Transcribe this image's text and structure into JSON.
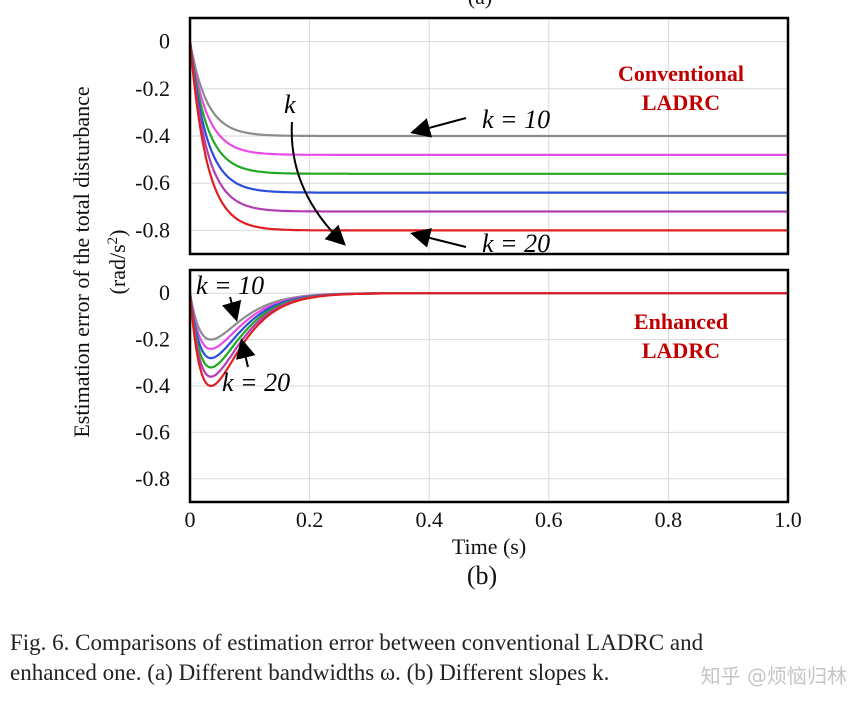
{
  "figure": {
    "ylabel_line1": "Estimation error of the total disturbance",
    "ylabel_line2_prefix": "(rad/s",
    "ylabel_line2_sup": "2",
    "ylabel_line2_suffix": ")",
    "xlabel": "Time (s)",
    "subfig_label": "(b)",
    "top_label_partial": "(a)"
  },
  "caption": {
    "line1": "Fig. 6.    Comparisons of estimation error between conventional LADRC and",
    "line2": "enhanced one. (a) Different bandwidths ω. (b) Different slopes k."
  },
  "watermark": "知乎 @烦恼归林",
  "chart_data": [
    {
      "type": "line",
      "panel": "conventional",
      "title": "Conventional LADRC",
      "title_line1": "Conventional",
      "title_line2": "LADRC",
      "title_color": "#c00000",
      "xlim": [
        0,
        1.0
      ],
      "ylim": [
        -0.9,
        0.1
      ],
      "yticks": [
        "0",
        "-0.2",
        "-0.4",
        "-0.6",
        "-0.8"
      ],
      "ytick_values": [
        0,
        -0.2,
        -0.4,
        -0.6,
        -0.8
      ],
      "grid": true,
      "annotations": {
        "arrow_label": "k",
        "k10_label": "k = 10",
        "k20_label": "k = 20"
      },
      "series": [
        {
          "color": "#8c8c8c",
          "steady": -0.4
        },
        {
          "color": "#e84be8",
          "steady": -0.48
        },
        {
          "color": "#22a822",
          "steady": -0.56
        },
        {
          "color": "#2b4fd8",
          "steady": -0.64
        },
        {
          "color": "#b43cb4",
          "steady": -0.72
        },
        {
          "color": "#e02020",
          "steady": -0.8
        }
      ]
    },
    {
      "type": "line",
      "panel": "enhanced",
      "title": "Enhanced LADRC",
      "title_line1": "Enhanced",
      "title_line2": "LADRC",
      "title_color": "#c00000",
      "xlim": [
        0,
        1.0
      ],
      "ylim": [
        -0.9,
        0.1
      ],
      "yticks": [
        "0",
        "-0.2",
        "-0.4",
        "-0.6",
        "-0.8"
      ],
      "ytick_values": [
        0,
        -0.2,
        -0.4,
        -0.6,
        -0.8
      ],
      "xticks": [
        "0",
        "0.2",
        "0.4",
        "0.6",
        "0.8",
        "1.0"
      ],
      "xtick_values": [
        0,
        0.2,
        0.4,
        0.6,
        0.8,
        1.0
      ],
      "grid": true,
      "annotations": {
        "k10_label": "k = 10",
        "k20_label": "k = 20"
      },
      "series": [
        {
          "color": "#8c8c8c",
          "peak": -0.2
        },
        {
          "color": "#e84be8",
          "peak": -0.24
        },
        {
          "color": "#2b4fd8",
          "peak": -0.28
        },
        {
          "color": "#22a822",
          "peak": -0.32
        },
        {
          "color": "#b43cb4",
          "peak": -0.36
        },
        {
          "color": "#e02020",
          "peak": -0.4
        }
      ]
    }
  ]
}
